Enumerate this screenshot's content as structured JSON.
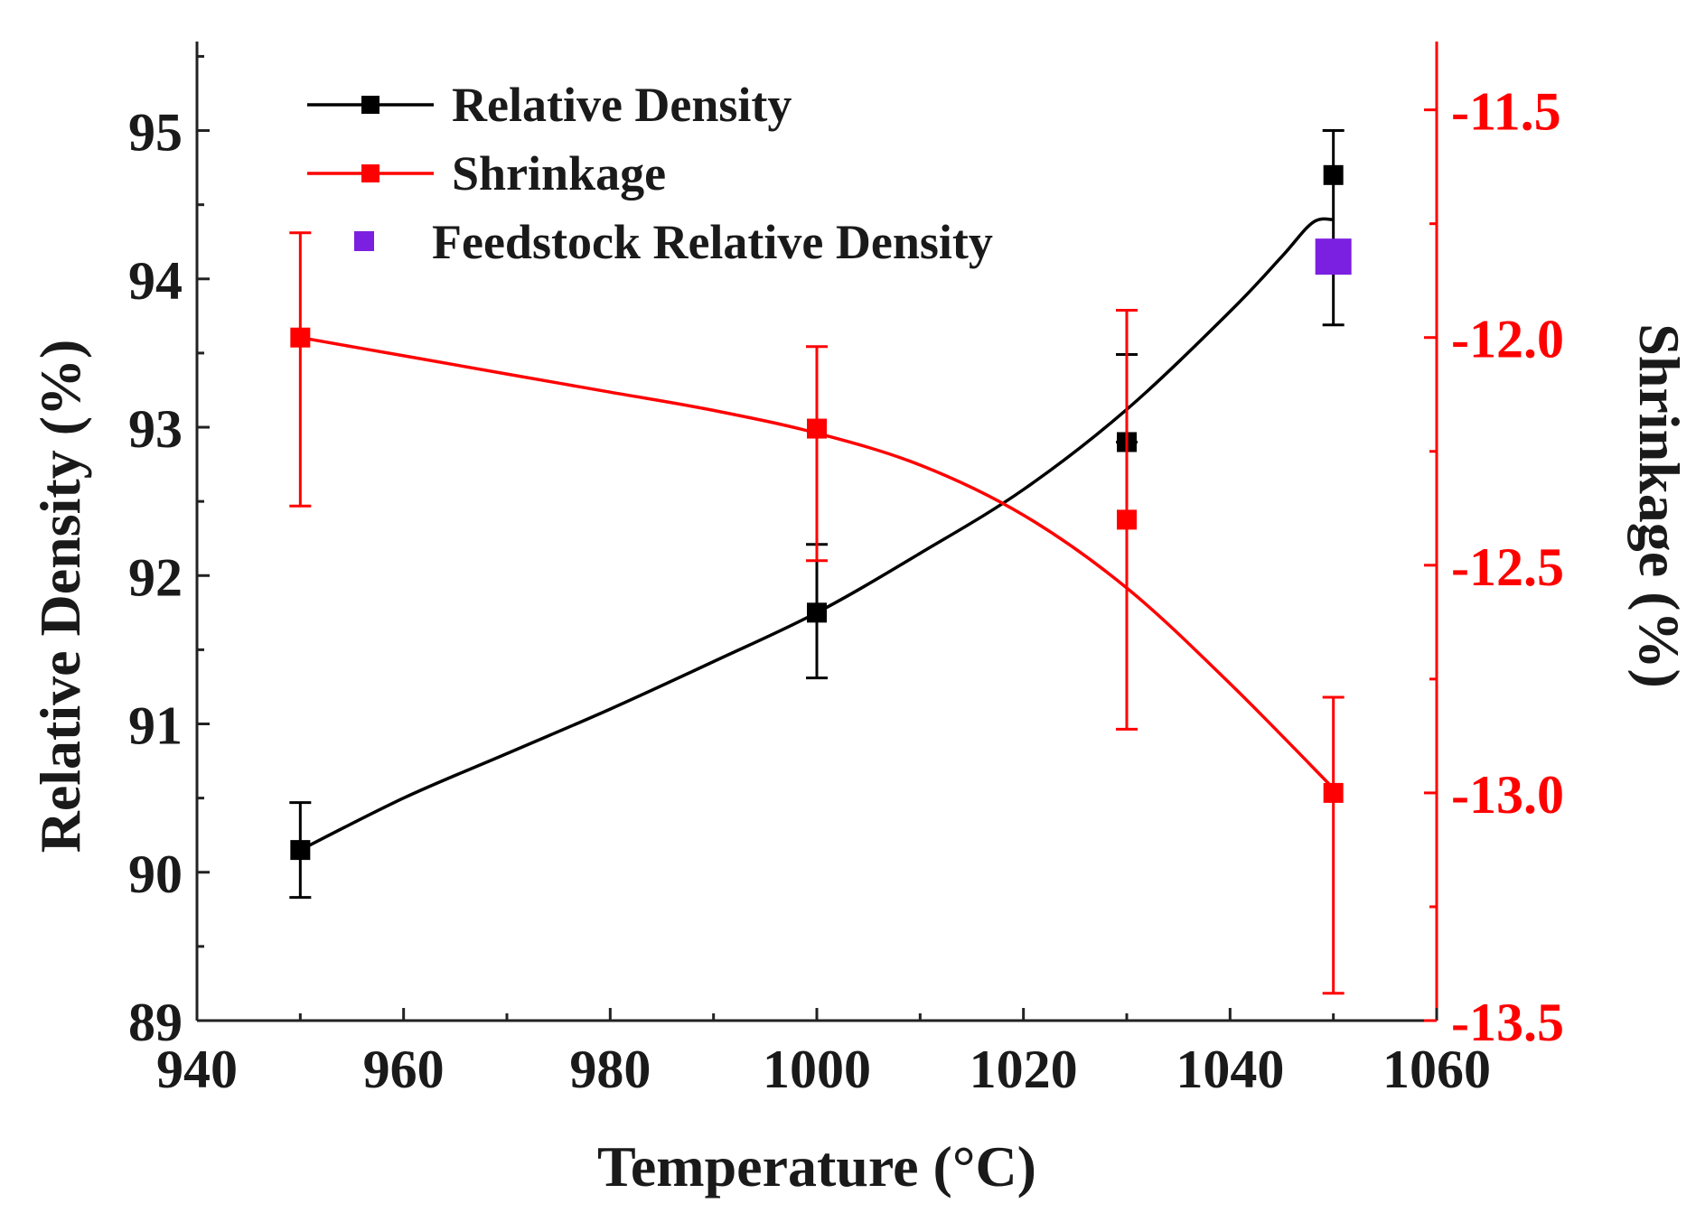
{
  "chart_data": {
    "type": "line",
    "title": "",
    "xlabel": "Temperature (°C)",
    "ylabel_left": "Relative Density (%)",
    "ylabel_right": "Shrinkage (%)",
    "xlim": [
      940,
      1060
    ],
    "ylim_left": [
      89,
      95.6
    ],
    "ylim_right": [
      -13.5,
      -11.35
    ],
    "x_ticks": [
      940,
      960,
      980,
      1000,
      1020,
      1040,
      1060
    ],
    "y_left_ticks": [
      89,
      90,
      91,
      92,
      93,
      94,
      95
    ],
    "y_right_ticks": [
      -13.5,
      -13.0,
      -12.5,
      -12.0,
      -11.5
    ],
    "y_right_tick_labels": [
      "-13.5",
      "-13.0",
      "-12.5",
      "-12.0",
      "-11.5"
    ],
    "legend_position": "top-left",
    "series": [
      {
        "name": "Relative Density",
        "axis": "left",
        "color": "#000000",
        "x": [
          950,
          1000,
          1030,
          1050
        ],
        "y": [
          90.15,
          91.75,
          92.9,
          94.7
        ],
        "err_low": [
          89.83,
          91.31,
          92.9,
          93.69
        ],
        "err_high": [
          90.47,
          92.21,
          93.49,
          95.0
        ],
        "fit_x": [
          950,
          960,
          970,
          980,
          990,
          1000,
          1010,
          1020,
          1030,
          1040,
          1045,
          1048,
          1050
        ],
        "fit_y": [
          90.15,
          90.5,
          90.8,
          91.1,
          91.42,
          91.75,
          92.15,
          92.58,
          93.12,
          93.78,
          94.15,
          94.38,
          94.4
        ]
      },
      {
        "name": "Shrinkage",
        "axis": "right",
        "color": "#ff0000",
        "x": [
          950,
          1000,
          1030,
          1050
        ],
        "y": [
          -12.0,
          -12.2,
          -12.4,
          -13.0
        ],
        "err_low": [
          -12.37,
          -12.49,
          -12.86,
          -13.44
        ],
        "err_high": [
          -11.77,
          -12.02,
          -11.94,
          -12.79
        ],
        "fit_x": [
          950,
          960,
          970,
          980,
          990,
          1000,
          1010,
          1020,
          1030,
          1040,
          1050
        ],
        "fit_y": [
          -12.0,
          -12.04,
          -12.08,
          -12.12,
          -12.16,
          -12.21,
          -12.28,
          -12.39,
          -12.55,
          -12.76,
          -12.99
        ]
      },
      {
        "name": "Feedstock Relative Density",
        "axis": "left",
        "color": "#7b1fe0",
        "marker": "square",
        "x": [
          1050
        ],
        "y": [
          94.15
        ]
      }
    ]
  }
}
